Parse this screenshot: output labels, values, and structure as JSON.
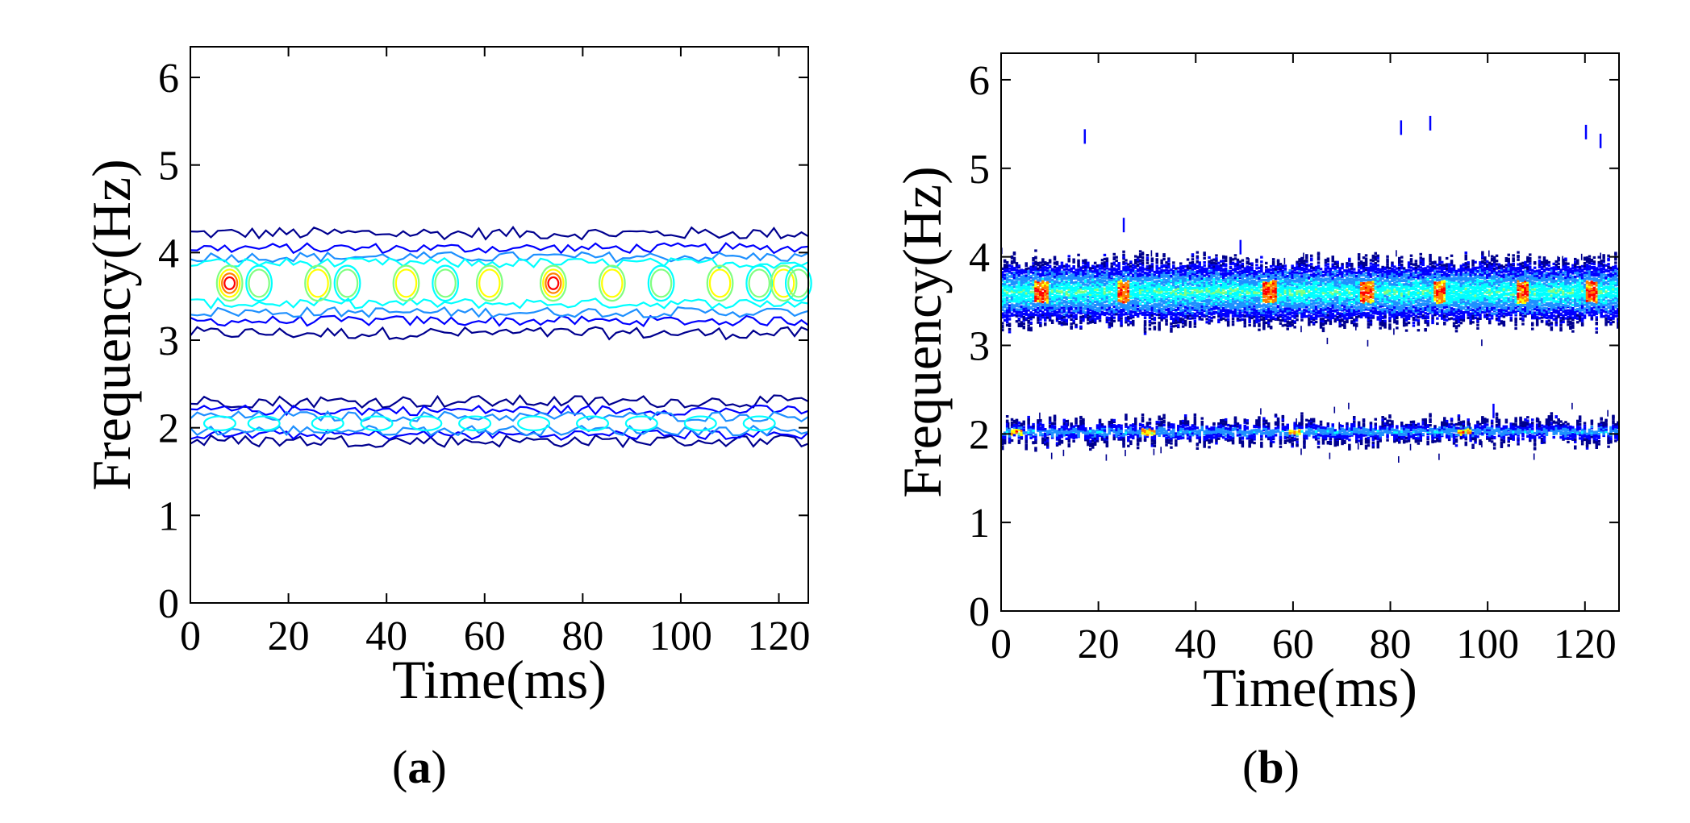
{
  "figure": {
    "panels": [
      {
        "label_open": "(",
        "label_letter": "a",
        "label_close": ")"
      },
      {
        "label_open": "(",
        "label_letter": "b",
        "label_close": ")"
      }
    ]
  },
  "chart_data": [
    {
      "type": "contour",
      "panel": "a",
      "title": "",
      "xlabel": "Time(ms)",
      "ylabel": "Frequency(Hz)",
      "xlim": [
        0,
        126
      ],
      "ylim": [
        0,
        6.35
      ],
      "xticks": [
        0,
        20,
        40,
        60,
        80,
        100,
        120
      ],
      "yticks": [
        0,
        1,
        2,
        3,
        4,
        5,
        6
      ],
      "colormap": [
        "#00008f",
        "#0000ff",
        "#1e90ff",
        "#00ffff",
        "#7fff7f",
        "#ffff00",
        "#ff7f00",
        "#ff0000",
        "#800000"
      ],
      "bands": [
        {
          "name": "upper band",
          "center_hz": 3.65,
          "outer_low_hz": 3.05,
          "outer_high_hz": 4.25,
          "levels": [
            {
              "low": 3.08,
              "high": 4.22,
              "color": "#00008f"
            },
            {
              "low": 3.22,
              "high": 4.05,
              "color": "#0000ff"
            },
            {
              "low": 3.32,
              "high": 3.95,
              "color": "#1e90ff"
            },
            {
              "low": 3.42,
              "high": 3.88,
              "color": "#00ffff"
            }
          ],
          "peaks_ms": [
            8,
            14,
            26,
            32,
            44,
            52,
            61,
            74,
            86,
            96,
            108,
            116,
            121,
            124
          ],
          "max_peak_ms": [
            8,
            73
          ]
        },
        {
          "name": "lower band",
          "center_hz": 2.05,
          "outer_low_hz": 1.85,
          "outer_high_hz": 2.32,
          "levels": [
            {
              "low": 1.85,
              "high": 2.3,
              "color": "#00008f"
            },
            {
              "low": 1.92,
              "high": 2.2,
              "color": "#0000ff"
            },
            {
              "low": 1.97,
              "high": 2.13,
              "color": "#1e90ff"
            }
          ],
          "peaks_ms": [
            6,
            15,
            28,
            38,
            48,
            58,
            70,
            82,
            92,
            104,
            116
          ]
        }
      ]
    },
    {
      "type": "heatmap",
      "panel": "b",
      "title": "",
      "xlabel": "Time(ms)",
      "ylabel": "Frequency(Hz)",
      "xlim": [
        0,
        127
      ],
      "ylim": [
        0,
        6.3
      ],
      "xticks": [
        0,
        20,
        40,
        60,
        80,
        100,
        120
      ],
      "yticks": [
        0,
        1,
        2,
        3,
        4,
        5,
        6
      ],
      "colormap": [
        "#00008f",
        "#0000ff",
        "#1e90ff",
        "#00ffff",
        "#7fff7f",
        "#ffff00",
        "#ff7f00",
        "#ff0000"
      ],
      "bands": [
        {
          "name": "upper band",
          "center_hz": 3.6,
          "low_hz": 3.25,
          "high_hz": 3.95,
          "hotspots_ms": [
            8,
            25,
            55,
            75,
            90,
            107,
            121
          ]
        },
        {
          "name": "lower band",
          "center_hz": 2.02,
          "low_hz": 1.92,
          "high_hz": 2.12,
          "hotspots_ms": [
            3,
            30,
            60,
            95
          ]
        }
      ],
      "outliers": [
        {
          "t": 17,
          "f": 5.35
        },
        {
          "t": 25,
          "f": 4.35
        },
        {
          "t": 49,
          "f": 4.1
        },
        {
          "t": 82,
          "f": 5.45
        },
        {
          "t": 88,
          "f": 5.5
        },
        {
          "t": 120,
          "f": 5.4
        },
        {
          "t": 123,
          "f": 5.3
        },
        {
          "t": 101,
          "f": 2.25
        }
      ]
    }
  ]
}
